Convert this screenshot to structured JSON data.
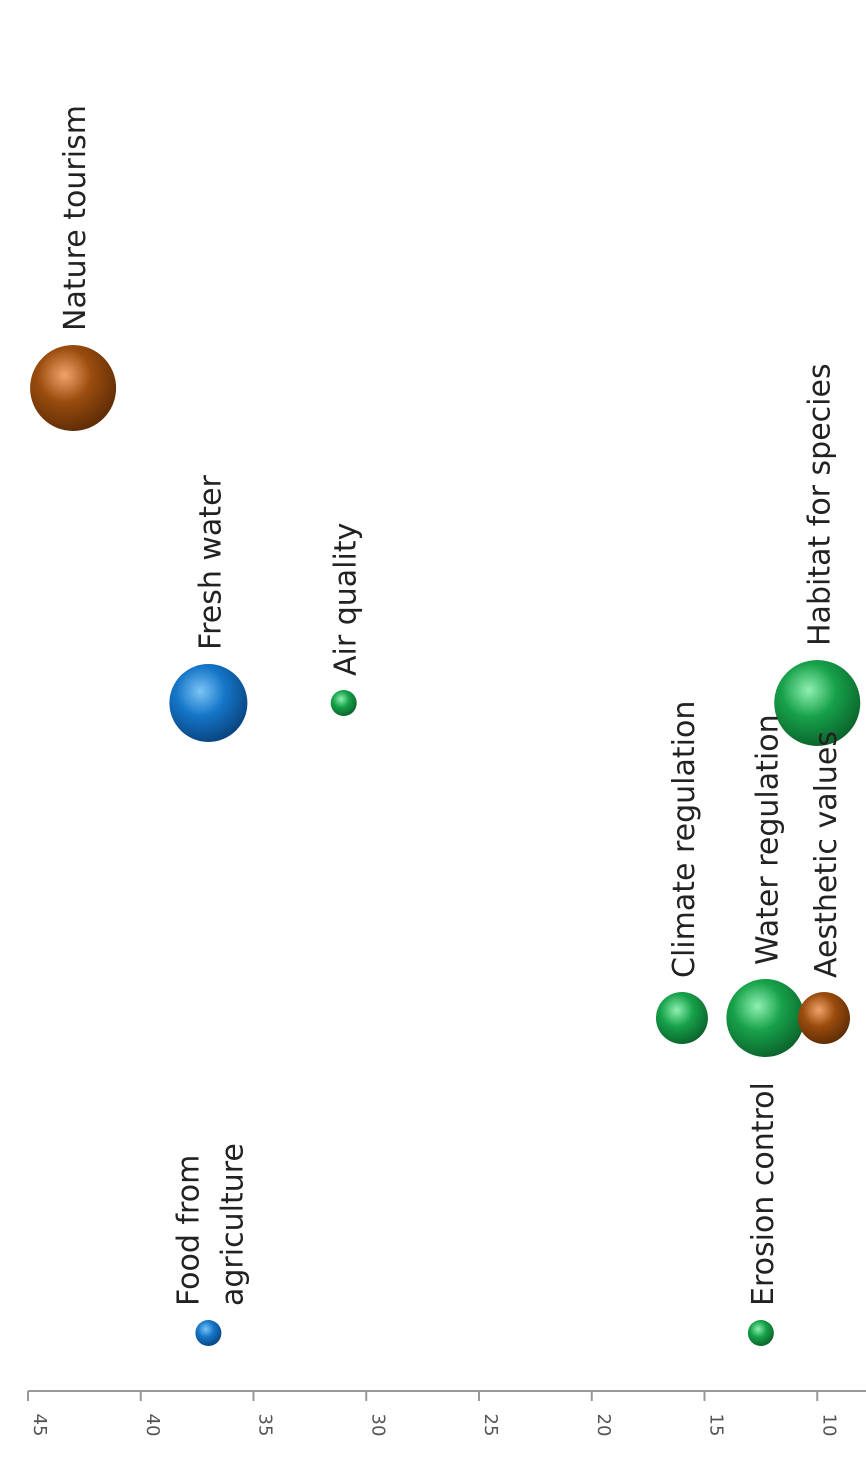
{
  "chart_data": {
    "type": "scatter",
    "orientation": "rotated-90-clockwise",
    "y_axis": {
      "ticks": [
        "45",
        "40",
        "35",
        "30",
        "25",
        "20",
        "15",
        "10"
      ],
      "tick_values": [
        45,
        40,
        35,
        30,
        25,
        20,
        15,
        10
      ],
      "range": [
        9.4,
        45
      ]
    },
    "grid": false,
    "legend": "none",
    "colors": {
      "provisioning": "#1576c8",
      "regulating": "#17a14a",
      "cultural": "#9a4c0e"
    },
    "points": [
      {
        "label_lines": [
          "Food from",
          "agriculture"
        ],
        "x": 1,
        "y": 37,
        "size": 1,
        "color_key": "provisioning"
      },
      {
        "label_lines": [
          "Erosion control"
        ],
        "x": 1,
        "y": 12.5,
        "size": 1,
        "color_key": "regulating"
      },
      {
        "label_lines": [
          "Climate regulation"
        ],
        "x": 2,
        "y": 16,
        "size": 2,
        "color_key": "regulating"
      },
      {
        "label_lines": [
          "Water regulation"
        ],
        "x": 2,
        "y": 12.3,
        "size": 3,
        "color_key": "regulating"
      },
      {
        "label_lines": [
          "Aesthetic values"
        ],
        "x": 2,
        "y": 9.7,
        "size": 2,
        "color_key": "cultural"
      },
      {
        "label_lines": [
          "Fresh water"
        ],
        "x": 3,
        "y": 37,
        "size": 3,
        "color_key": "provisioning"
      },
      {
        "label_lines": [
          "Air quality"
        ],
        "x": 3,
        "y": 31,
        "size": 1,
        "color_key": "regulating"
      },
      {
        "label_lines": [
          "Habitat for species"
        ],
        "x": 3,
        "y": 10,
        "size": 4,
        "color_key": "regulating"
      },
      {
        "label_lines": [
          "Nature tourism"
        ],
        "x": 4,
        "y": 43,
        "size": 4,
        "color_key": "cultural"
      }
    ]
  }
}
